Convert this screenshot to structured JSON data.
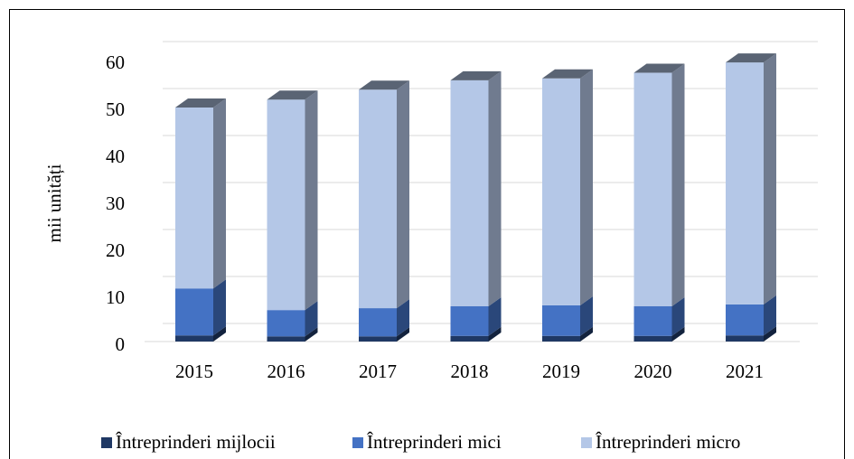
{
  "chart_data": {
    "type": "bar3d_stacked",
    "y_axis_label": "mii unități",
    "categories": [
      "2015",
      "2016",
      "2017",
      "2018",
      "2019",
      "2020",
      "2021"
    ],
    "series": [
      {
        "name": "Întreprinderi mijlocii",
        "color": "#1f3864",
        "values": [
          1.3,
          1.1,
          1.1,
          1.2,
          1.2,
          1.2,
          1.3
        ]
      },
      {
        "name": "Întreprinderi mici",
        "color": "#4472c4",
        "values": [
          10.0,
          5.6,
          6.0,
          6.3,
          6.5,
          6.3,
          6.6
        ]
      },
      {
        "name": "Întreprinderi micro",
        "color": "#b4c7e7",
        "values": [
          38.5,
          44.8,
          46.5,
          48.1,
          48.3,
          49.7,
          51.5
        ]
      }
    ],
    "ylim": [
      0,
      60
    ],
    "yticks": [
      0,
      10,
      20,
      30,
      40,
      50,
      60
    ],
    "grid": true,
    "legend": "bottom"
  }
}
